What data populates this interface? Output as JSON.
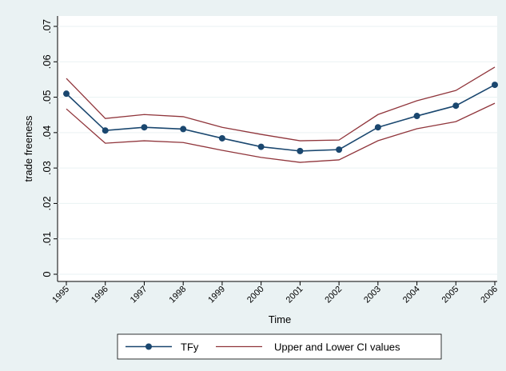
{
  "chart_data": {
    "type": "line",
    "y_label": "trade freeness",
    "x_label": "Time",
    "x": [
      1995,
      1996,
      1997,
      1998,
      1999,
      2000,
      2001,
      2002,
      2003,
      2004,
      2005,
      2006
    ],
    "xlim": [
      1995,
      2006
    ],
    "xticks": [
      1995,
      1996,
      1997,
      1998,
      1999,
      2000,
      2001,
      2002,
      2003,
      2004,
      2005,
      2006
    ],
    "ylim": [
      0,
      0.07
    ],
    "yticks": [
      0,
      {
        "value": 0.01,
        "label": ".01"
      },
      {
        "value": 0.02,
        "label": ".02"
      },
      {
        "value": 0.03,
        "label": ".03"
      },
      {
        "value": 0.04,
        "label": ".04"
      },
      {
        "value": 0.05,
        "label": ".05"
      },
      {
        "value": 0.06,
        "label": ".06"
      },
      {
        "value": 0.07,
        "label": ".07"
      }
    ],
    "grid": true,
    "series": [
      {
        "name": "TFy",
        "color": "#1a476f",
        "values": [
          0.051,
          0.0406,
          0.0415,
          0.041,
          0.0384,
          0.036,
          0.0348,
          0.0352,
          0.0415,
          0.0447,
          0.0476,
          0.0535
        ]
      }
    ],
    "ci": {
      "name": "Upper and Lower CI values",
      "color": "#90353b",
      "upper": [
        0.0553,
        0.044,
        0.0451,
        0.0445,
        0.0415,
        0.0395,
        0.0377,
        0.0379,
        0.0451,
        0.049,
        0.0519,
        0.0585
      ],
      "lower": [
        0.0467,
        0.037,
        0.0377,
        0.0372,
        0.035,
        0.033,
        0.0316,
        0.0323,
        0.0377,
        0.0411,
        0.0431,
        0.0483
      ]
    }
  }
}
